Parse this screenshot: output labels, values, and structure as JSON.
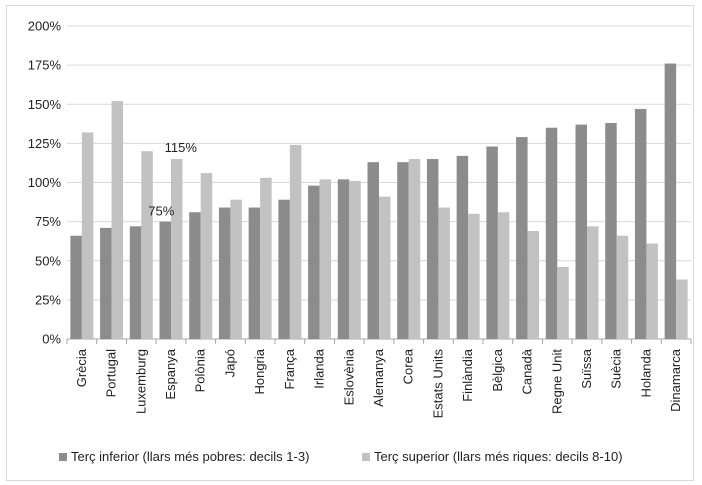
{
  "chart_data": {
    "type": "bar",
    "categories": [
      "Grècia",
      "Portugal",
      "Luxemburg",
      "Espanya",
      "Polònia",
      "Japó",
      "Hongria",
      "França",
      "Irlanda",
      "Eslovènia",
      "Alemanya",
      "Corea",
      "Estats Units",
      "Finlàndia",
      "Bèlgica",
      "Canadà",
      "Regne Unit",
      "Suïssa",
      "Suècia",
      "Holanda",
      "Dinamarca"
    ],
    "series": [
      {
        "name": "Terç inferior (llars més pobres: decils 1-3)",
        "color": "#8c8c8c",
        "values": [
          66,
          71,
          72,
          75,
          81,
          84,
          84,
          89,
          98,
          102,
          113,
          113,
          115,
          117,
          123,
          129,
          135,
          137,
          138,
          147,
          176
        ]
      },
      {
        "name": "Terç superior  (llars més riques: decils 8-10)",
        "color": "#c2c2c2",
        "values": [
          132,
          152,
          120,
          115,
          106,
          89,
          103,
          124,
          102,
          101,
          91,
          115,
          84,
          80,
          81,
          69,
          46,
          72,
          66,
          61,
          38
        ]
      }
    ],
    "ylim": [
      0,
      200
    ],
    "yticks": [
      "0%",
      "25%",
      "50%",
      "75%",
      "100%",
      "125%",
      "150%",
      "175%",
      "200%"
    ],
    "ytick_values": [
      0,
      25,
      50,
      75,
      100,
      125,
      150,
      175,
      200
    ],
    "grid": true,
    "legend_position": "bottom",
    "annotations": [
      {
        "text": "75%",
        "category": "Espanya",
        "series": 0,
        "value": 75
      },
      {
        "text": "115%",
        "category": "Espanya",
        "series": 1,
        "value": 115
      }
    ],
    "title": "",
    "xlabel": "",
    "ylabel": ""
  }
}
